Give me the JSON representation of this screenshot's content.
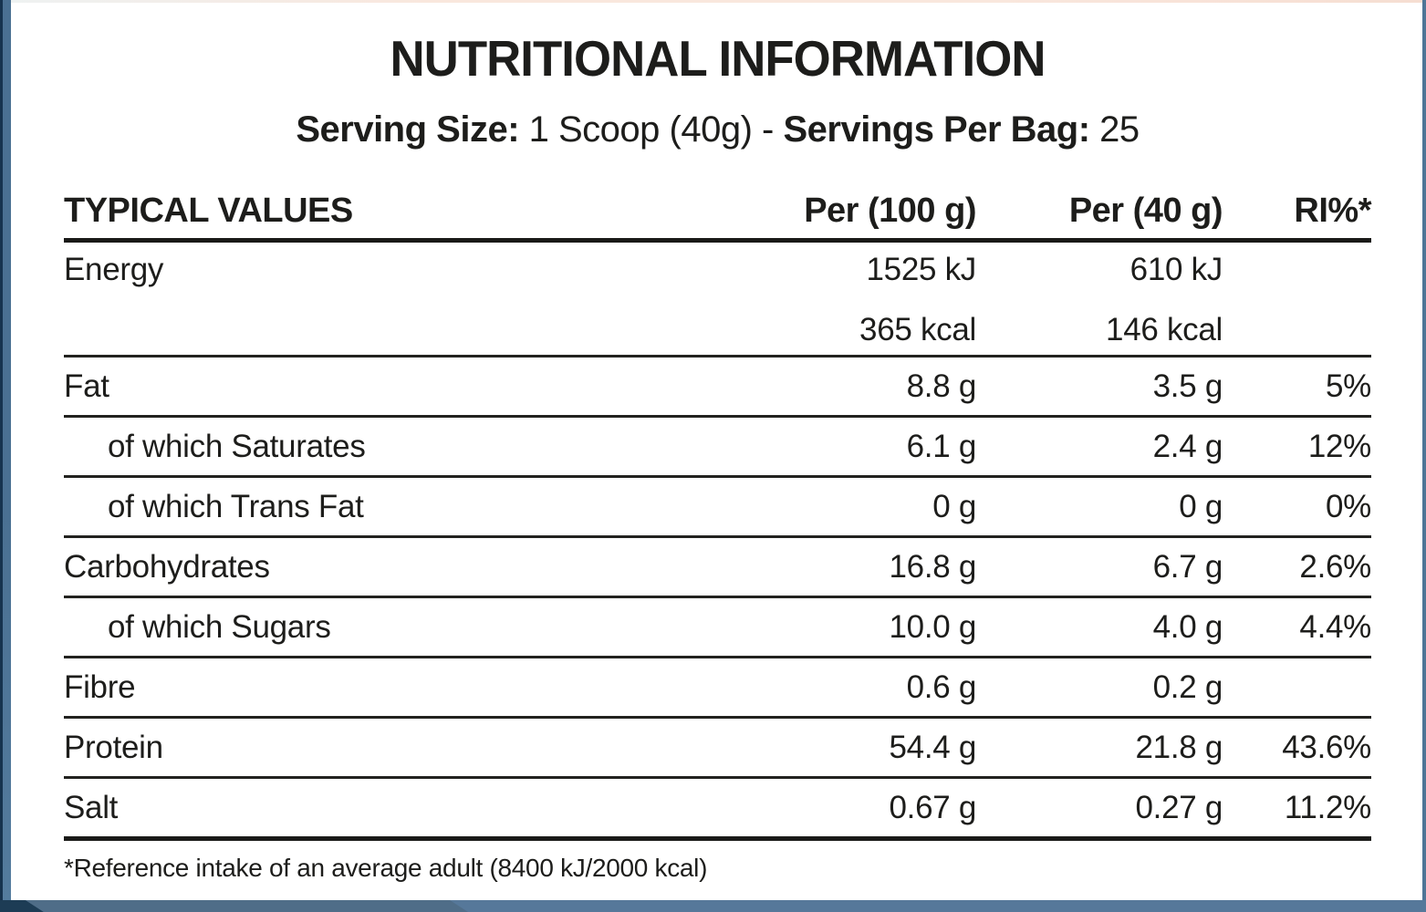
{
  "title": "NUTRITIONAL INFORMATION",
  "serving": {
    "size_label": "Serving Size:",
    "size_value": " 1 Scoop (40g) ",
    "separator": "- ",
    "bag_label": "Servings Per Bag:",
    "bag_value": " 25"
  },
  "table": {
    "headers": [
      "TYPICAL VALUES",
      "Per (100 g)",
      "Per (40 g)",
      "RI%*"
    ],
    "energy_row": {
      "name": "Energy",
      "per100_kj": "1525 kJ",
      "per40_kj": "610 kJ",
      "per100_kcal": "365 kcal",
      "per40_kcal": "146 kcal",
      "ri": ""
    },
    "rows": [
      {
        "name": "Fat",
        "per100": "8.8 g",
        "per40": "3.5 g",
        "ri": "5%"
      },
      {
        "name": "of which Saturates",
        "per100": "6.1 g",
        "per40": "2.4 g",
        "ri": "12%"
      },
      {
        "name": "of which Trans Fat",
        "per100": "0 g",
        "per40": "0 g",
        "ri": "0%"
      },
      {
        "name": "Carbohydrates",
        "per100": "16.8 g",
        "per40": "6.7 g",
        "ri": "2.6%"
      },
      {
        "name": "of which Sugars",
        "per100": "10.0 g",
        "per40": "4.0 g",
        "ri": "4.4%"
      },
      {
        "name": "Fibre",
        "per100": "0.6 g",
        "per40": "0.2 g",
        "ri": ""
      },
      {
        "name": "Protein",
        "per100": "54.4 g",
        "per40": "21.8 g",
        "ri": "43.6%"
      },
      {
        "name": "Salt",
        "per100": "0.67 g",
        "per40": "0.27 g",
        "ri": "11.2%"
      }
    ]
  },
  "footnote": "*Reference intake of an average adult (8400 kJ/2000 kcal)",
  "colors": {
    "text": "#1d1d1b",
    "frame_navy": "#16334e",
    "frame_steel_blue": "#4a7092",
    "bottom_strip": "#56789a",
    "top_accent_salmon": "#f9e7dd"
  }
}
